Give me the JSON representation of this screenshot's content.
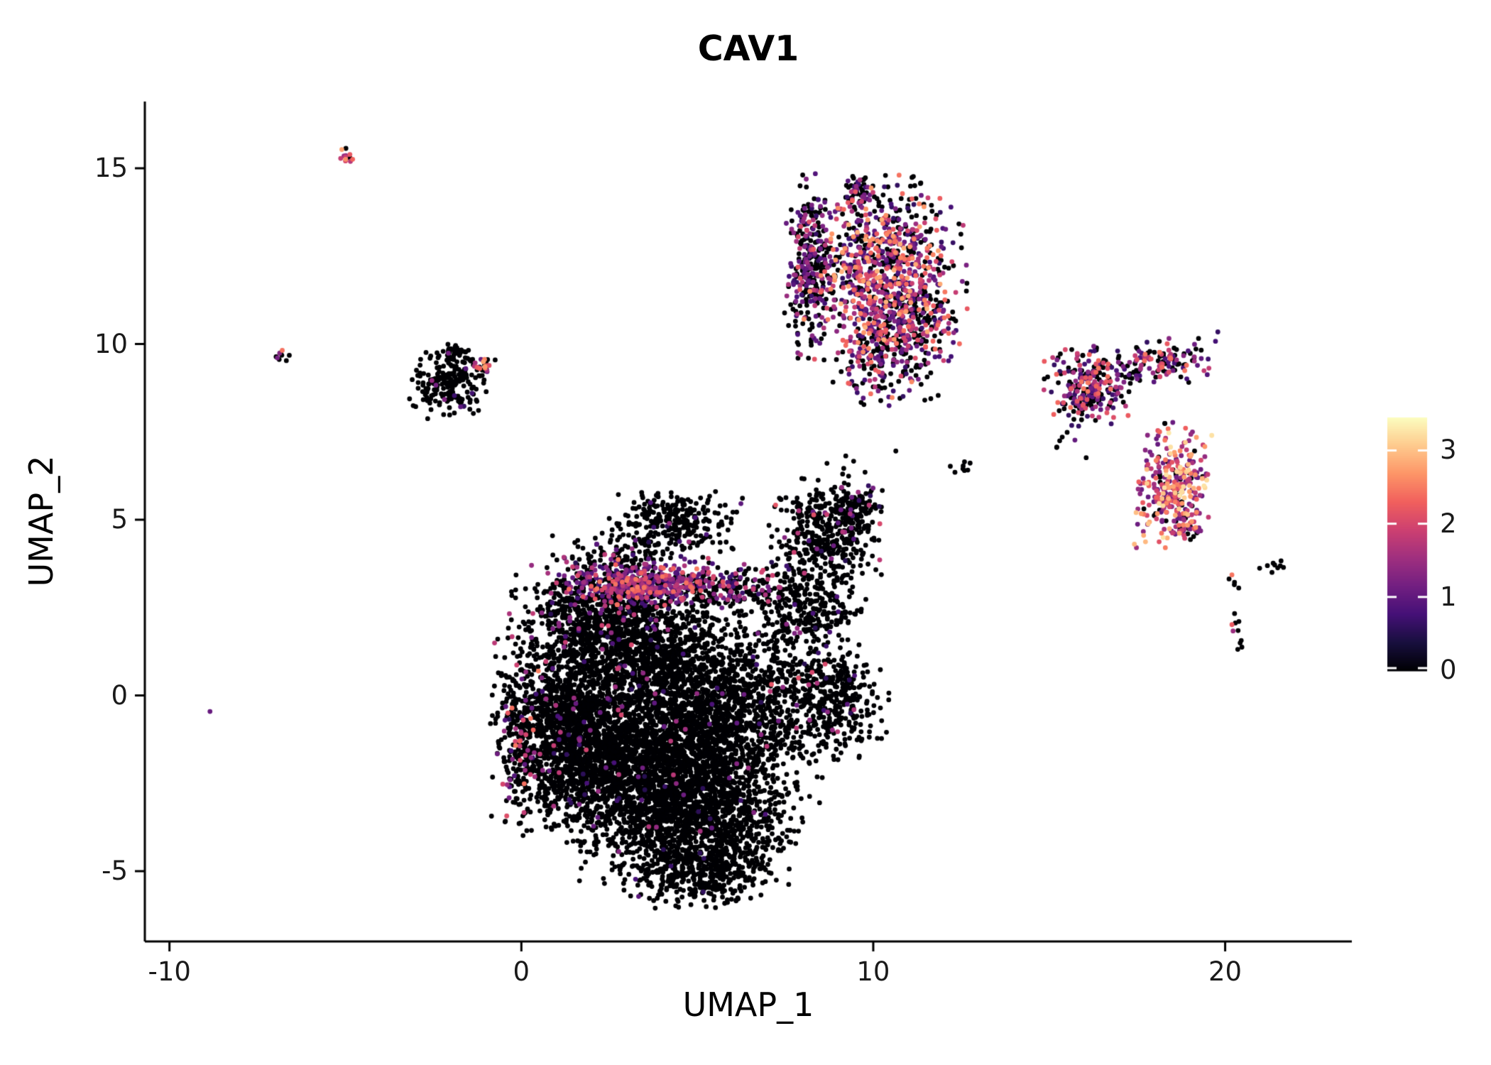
{
  "chart_data": {
    "type": "scatter",
    "title": "CAV1",
    "xlabel": "UMAP_1",
    "ylabel": "UMAP_2",
    "xlim": [
      -10.7,
      23.6
    ],
    "ylim": [
      -7.0,
      16.9
    ],
    "x_ticks": [
      -10,
      0,
      10,
      20
    ],
    "y_ticks": [
      -5,
      0,
      5,
      10,
      15
    ],
    "grid": false,
    "legend": {
      "position": "right",
      "ticks": [
        0,
        1,
        2,
        3
      ],
      "min": 0,
      "max": 3.45,
      "colormap": "magma",
      "stops": [
        [
          0,
          "#000004"
        ],
        [
          0.111,
          "#180f3e"
        ],
        [
          0.222,
          "#451077"
        ],
        [
          0.333,
          "#721f81"
        ],
        [
          0.444,
          "#9f2f7f"
        ],
        [
          0.556,
          "#cd4071"
        ],
        [
          0.667,
          "#f1605d"
        ],
        [
          0.778,
          "#fd9567"
        ],
        [
          0.889,
          "#feca8d"
        ],
        [
          1,
          "#fcfdbf"
        ]
      ]
    },
    "clusters": [
      {
        "name": "main-bottom",
        "n": 1500,
        "cx": 4.8,
        "cy": -3.3,
        "sx": 1.35,
        "sy": 1.05,
        "rot": 0,
        "p_zero": 0.985,
        "expr_lo": 0.5,
        "expr_hi": 1.8
      },
      {
        "name": "main-bottom-left",
        "n": 1500,
        "cx": 3.0,
        "cy": -1.9,
        "sx": 1.3,
        "sy": 1.1,
        "rot": 0,
        "p_zero": 0.985,
        "expr_lo": 0.5,
        "expr_hi": 1.8
      },
      {
        "name": "left-lobe",
        "n": 1100,
        "cx": 1.2,
        "cy": -0.9,
        "sx": 0.9,
        "sy": 1.25,
        "rot": 0,
        "p_zero": 0.965,
        "expr_lo": 0.5,
        "expr_hi": 2.0
      },
      {
        "name": "right-center",
        "n": 1300,
        "cx": 5.6,
        "cy": -0.7,
        "sx": 1.25,
        "sy": 1.3,
        "rot": 0,
        "p_zero": 0.99,
        "expr_lo": 0.5,
        "expr_hi": 1.6
      },
      {
        "name": "center-top",
        "n": 1000,
        "cx": 3.7,
        "cy": 0.9,
        "sx": 1.3,
        "sy": 1.0,
        "rot": 0,
        "p_zero": 0.98,
        "expr_lo": 0.5,
        "expr_hi": 1.8
      },
      {
        "name": "top-left-lobe",
        "n": 800,
        "cx": 2.3,
        "cy": 2.1,
        "sx": 1.15,
        "sy": 0.8,
        "rot": 0,
        "p_zero": 0.94,
        "expr_lo": 0.5,
        "expr_hi": 2.0
      },
      {
        "name": "bottom-tail",
        "n": 350,
        "cx": 5.1,
        "cy": -5.0,
        "sx": 0.95,
        "sy": 0.5,
        "rot": 0,
        "p_zero": 0.99,
        "expr_lo": 0.5,
        "expr_hi": 1.2
      },
      {
        "name": "top-bump",
        "n": 260,
        "cx": 4.4,
        "cy": 5.0,
        "sx": 0.8,
        "sy": 0.4,
        "rot": 0,
        "p_zero": 0.97,
        "expr_lo": 0.5,
        "expr_hi": 1.5
      },
      {
        "name": "left-edge-colored",
        "n": 130,
        "cx": -0.05,
        "cy": -1.0,
        "sx": 0.3,
        "sy": 1.25,
        "rot": 0,
        "p_zero": 0.6,
        "expr_lo": 0.7,
        "expr_hi": 2.6
      },
      {
        "name": "expression-band",
        "n": 420,
        "cx": 3.3,
        "cy": 3.2,
        "sx": 1.05,
        "sy": 0.3,
        "rot": 0,
        "p_zero": 0.22,
        "expr_lo": 0.7,
        "expr_hi": 2.5
      },
      {
        "name": "expression-band-right",
        "n": 200,
        "cx": 5.9,
        "cy": 3.1,
        "sx": 0.8,
        "sy": 0.28,
        "rot": 0,
        "p_zero": 0.55,
        "expr_lo": 0.6,
        "expr_hi": 2.2
      },
      {
        "name": "band-top-scatter",
        "n": 120,
        "cx": 3.0,
        "cy": 4.05,
        "sx": 1.0,
        "sy": 0.4,
        "rot": 0,
        "p_zero": 0.78,
        "expr_lo": 0.5,
        "expr_hi": 1.8
      },
      {
        "name": "right-lobe-top",
        "n": 380,
        "cx": 8.7,
        "cy": 4.7,
        "sx": 0.72,
        "sy": 0.62,
        "rot": 0,
        "p_zero": 0.92,
        "expr_lo": 0.5,
        "expr_hi": 2.2
      },
      {
        "name": "right-lobe-mid",
        "n": 250,
        "cx": 8.4,
        "cy": 2.6,
        "sx": 0.6,
        "sy": 0.7,
        "rot": 0,
        "p_zero": 0.96,
        "expr_lo": 0.5,
        "expr_hi": 1.8
      },
      {
        "name": "right-lobe-bottom",
        "n": 400,
        "cx": 8.8,
        "cy": -0.2,
        "sx": 0.75,
        "sy": 0.72,
        "rot": 0,
        "p_zero": 0.92,
        "expr_lo": 0.5,
        "expr_hi": 2.3
      },
      {
        "name": "bridge",
        "n": 160,
        "cx": 7.2,
        "cy": 1.3,
        "sx": 0.45,
        "sy": 1.3,
        "rot": 0,
        "p_zero": 0.97,
        "expr_lo": 0.5,
        "expr_hi": 1.5
      },
      {
        "name": "right-lobe-nub",
        "n": 60,
        "cx": 9.6,
        "cy": 5.4,
        "sx": 0.3,
        "sy": 0.25,
        "rot": 0,
        "p_zero": 0.85,
        "expr_lo": 0.6,
        "expr_hi": 2.0
      },
      {
        "name": "gap-sparse",
        "n": 12,
        "cx": 9.4,
        "cy": 6.3,
        "sx": 0.55,
        "sy": 0.3,
        "rot": 0,
        "p_zero": 0.85,
        "expr_lo": 0.5,
        "expr_hi": 1.5
      },
      {
        "name": "gap-pair",
        "n": 8,
        "cx": 12.7,
        "cy": 6.55,
        "sx": 0.3,
        "sy": 0.12,
        "rot": 0,
        "p_zero": 1,
        "expr_lo": 0,
        "expr_hi": 0
      },
      {
        "name": "upper-main",
        "n": 950,
        "cx": 10.3,
        "cy": 12.1,
        "sx": 1.0,
        "sy": 1.15,
        "rot": 0,
        "p_zero": 0.32,
        "expr_lo": 0.6,
        "expr_hi": 2.9
      },
      {
        "name": "upper-left-arm",
        "n": 280,
        "cx": 8.15,
        "cy": 12.3,
        "sx": 0.28,
        "sy": 1.15,
        "rot": 0,
        "p_zero": 0.55,
        "expr_lo": 0.6,
        "expr_hi": 2.2
      },
      {
        "name": "upper-bottom-tail",
        "n": 240,
        "cx": 10.4,
        "cy": 9.7,
        "sx": 0.65,
        "sy": 0.65,
        "rot": 0,
        "p_zero": 0.45,
        "expr_lo": 0.6,
        "expr_hi": 2.6
      },
      {
        "name": "upper-top-nub",
        "n": 45,
        "cx": 9.55,
        "cy": 14.3,
        "sx": 0.16,
        "sy": 0.28,
        "rot": 0,
        "p_zero": 0.5,
        "expr_lo": 0.6,
        "expr_hi": 2.0
      },
      {
        "name": "upper-right-lobe",
        "n": 80,
        "cx": 11.5,
        "cy": 10.7,
        "sx": 0.42,
        "sy": 0.6,
        "rot": 0,
        "p_zero": 0.45,
        "expr_lo": 0.6,
        "expr_hi": 2.4
      },
      {
        "name": "rightA-main",
        "n": 260,
        "cx": 16.1,
        "cy": 8.8,
        "sx": 0.55,
        "sy": 0.5,
        "rot": 0,
        "p_zero": 0.42,
        "expr_lo": 0.6,
        "expr_hi": 2.5
      },
      {
        "name": "rightA-arm",
        "n": 140,
        "cx": 18.2,
        "cy": 9.45,
        "sx": 0.75,
        "sy": 0.3,
        "rot": 14,
        "p_zero": 0.45,
        "expr_lo": 0.6,
        "expr_hi": 2.5
      },
      {
        "name": "rightA-stray",
        "n": 8,
        "cx": 15.5,
        "cy": 7.3,
        "sx": 0.3,
        "sy": 0.3,
        "rot": 0,
        "p_zero": 0.7,
        "expr_lo": 0.6,
        "expr_hi": 1.5
      },
      {
        "name": "rightB-bright",
        "n": 330,
        "cx": 18.5,
        "cy": 5.9,
        "sx": 0.48,
        "sy": 0.78,
        "rot": 0,
        "p_zero": 0.13,
        "expr_lo": 1.0,
        "expr_hi": 3.3
      },
      {
        "name": "rightB-tip",
        "n": 30,
        "cx": 19.0,
        "cy": 4.75,
        "sx": 0.2,
        "sy": 0.18,
        "rot": 0,
        "p_zero": 0.2,
        "expr_lo": 1.2,
        "expr_hi": 3.0
      },
      {
        "name": "farright-line",
        "n": 15,
        "cx": 20.3,
        "cy": 2.0,
        "sx": 0.13,
        "sy": 0.65,
        "rot": 0,
        "p_zero": 0.87,
        "expr_lo": 1.5,
        "expr_hi": 3.0
      },
      {
        "name": "farright-dash",
        "n": 9,
        "cx": 21.4,
        "cy": 3.65,
        "sx": 0.28,
        "sy": 0.07,
        "rot": 12,
        "p_zero": 1,
        "expr_lo": 0,
        "expr_hi": 0
      },
      {
        "name": "left-small-main",
        "n": 210,
        "cx": -2.05,
        "cy": 8.85,
        "sx": 0.5,
        "sy": 0.42,
        "rot": 0,
        "p_zero": 0.95,
        "expr_lo": 0.6,
        "expr_hi": 1.8
      },
      {
        "name": "left-small-topnub",
        "n": 30,
        "cx": -1.85,
        "cy": 9.8,
        "sx": 0.2,
        "sy": 0.15,
        "rot": 0,
        "p_zero": 0.95,
        "expr_lo": 0.6,
        "expr_hi": 1.5
      },
      {
        "name": "left-small-colored-tip",
        "n": 22,
        "cx": -1.1,
        "cy": 9.35,
        "sx": 0.16,
        "sy": 0.16,
        "rot": 0,
        "p_zero": 0.3,
        "expr_lo": 1.0,
        "expr_hi": 3.0
      },
      {
        "name": "tiny-topleft",
        "n": 12,
        "cx": -4.95,
        "cy": 15.4,
        "sx": 0.14,
        "sy": 0.1,
        "rot": -20,
        "p_zero": 0.15,
        "expr_lo": 1.3,
        "expr_hi": 3.2
      },
      {
        "name": "tiny-left",
        "n": 9,
        "cx": -6.8,
        "cy": 9.7,
        "sx": 0.11,
        "sy": 0.1,
        "rot": 0,
        "p_zero": 0.6,
        "expr_lo": 1.0,
        "expr_hi": 2.6
      },
      {
        "name": "single-left-point",
        "n": 1,
        "cx": -8.85,
        "cy": -0.45,
        "sx": 0.01,
        "sy": 0.01,
        "rot": 0,
        "p_zero": 0,
        "expr_lo": 1.0,
        "expr_hi": 1.4
      }
    ]
  }
}
